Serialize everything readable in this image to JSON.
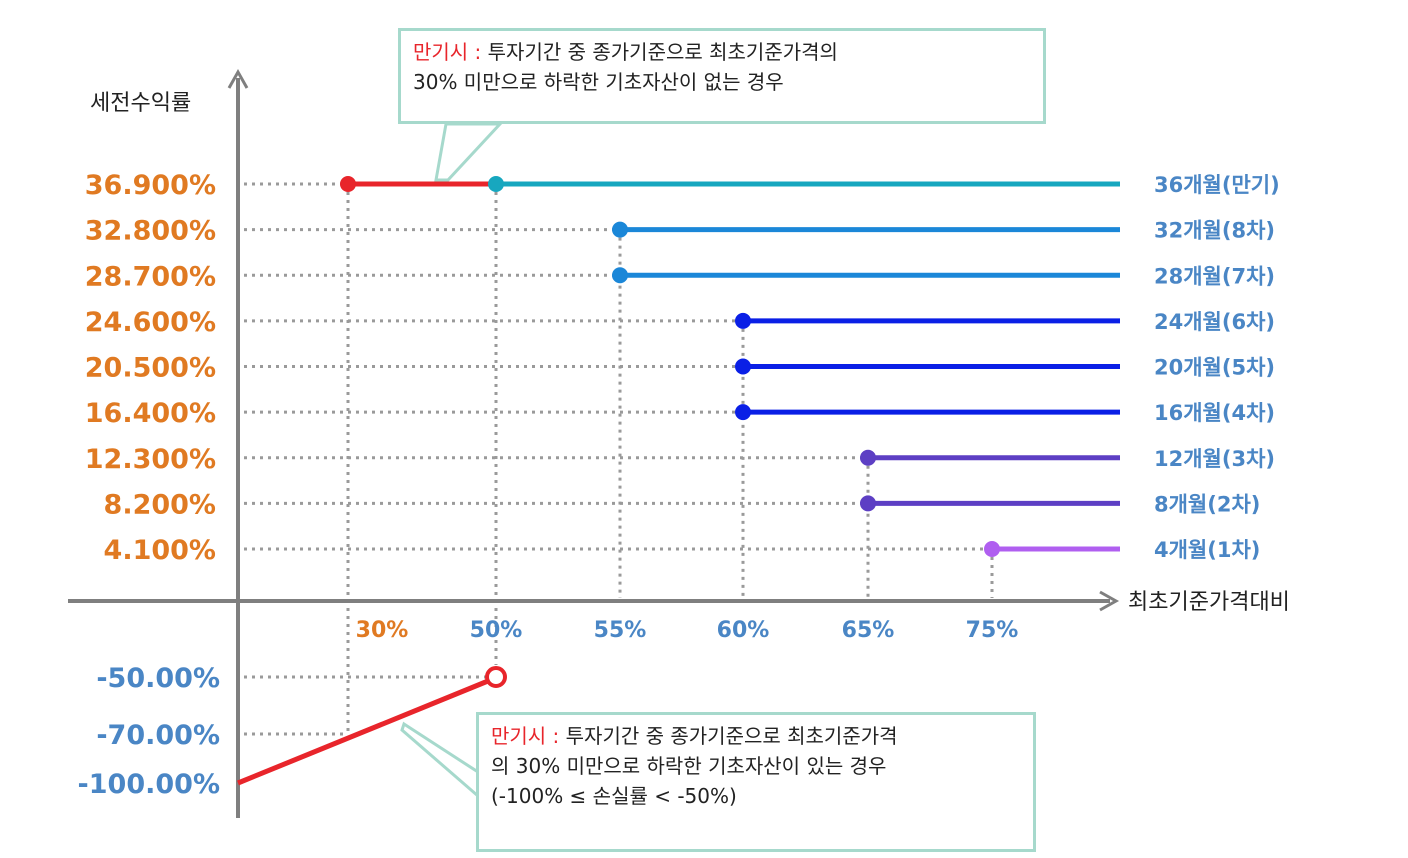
{
  "chart_data": {
    "type": "line",
    "y_axis_title": "세전수익률",
    "x_axis_title": "최초기준가격대비",
    "x_ticks": [
      {
        "label": "30%",
        "value": 30,
        "color": "#e07a22"
      },
      {
        "label": "50%",
        "value": 50,
        "color": "#4a86c5"
      },
      {
        "label": "55%",
        "value": 55,
        "color": "#4a86c5"
      },
      {
        "label": "60%",
        "value": 60,
        "color": "#4a86c5"
      },
      {
        "label": "65%",
        "value": 65,
        "color": "#4a86c5"
      },
      {
        "label": "75%",
        "value": 75,
        "color": "#4a86c5"
      }
    ],
    "y_ticks_positive": [
      {
        "label": "36.900%",
        "value": 36.9
      },
      {
        "label": "32.800%",
        "value": 32.8
      },
      {
        "label": "28.700%",
        "value": 28.7
      },
      {
        "label": "24.600%",
        "value": 24.6
      },
      {
        "label": "20.500%",
        "value": 20.5
      },
      {
        "label": "16.400%",
        "value": 16.4
      },
      {
        "label": "12.300%",
        "value": 12.3
      },
      {
        "label": "8.200%",
        "value": 8.2
      },
      {
        "label": "4.100%",
        "value": 4.1
      }
    ],
    "y_ticks_negative": [
      {
        "label": "-50.00%",
        "value": -50
      },
      {
        "label": "-70.00%",
        "value": -70
      },
      {
        "label": "-100.00%",
        "value": -100
      }
    ],
    "series": [
      {
        "name": "36개월(만기)",
        "return": 36.9,
        "barrier": 50,
        "color": "#17a7bf"
      },
      {
        "name": "32개월(8차)",
        "return": 32.8,
        "barrier": 55,
        "color": "#1b87d8"
      },
      {
        "name": "28개월(7차)",
        "return": 28.7,
        "barrier": 55,
        "color": "#1b87d8"
      },
      {
        "name": "24개월(6차)",
        "return": 24.6,
        "barrier": 60,
        "color": "#0a1fe6"
      },
      {
        "name": "20개월(5차)",
        "return": 20.5,
        "barrier": 60,
        "color": "#0a1fe6"
      },
      {
        "name": "16개월(4차)",
        "return": 16.4,
        "barrier": 60,
        "color": "#0a1fe6"
      },
      {
        "name": "12개월(3차)",
        "return": 12.3,
        "barrier": 65,
        "color": "#5d3fc4"
      },
      {
        "name": "8개월(2차)",
        "return": 8.2,
        "barrier": 65,
        "color": "#5d3fc4"
      },
      {
        "name": "4개월(1차)",
        "return": 4.1,
        "barrier": 75,
        "color": "#b05ff0"
      }
    ],
    "maturity_extension": {
      "from": 30,
      "to": 50,
      "return": 36.9,
      "color": "#e8252b"
    },
    "loss_line": {
      "from_return": -100,
      "to_barrier": 50,
      "to_return": -50,
      "color": "#e8252b"
    }
  },
  "colors": {
    "axis": "#7f7f7f",
    "grid": "#9a9a9a",
    "y_positive_label": "#e07a22",
    "y_negative_label": "#4a86c5",
    "series_label": "#4a86c5",
    "red": "#e8252b",
    "callout_border": "#a6d9cc"
  },
  "notes": {
    "top": {
      "prefix": "만기시 :",
      "line1": "투자기간 중 종가기준으로 최초기준가격의",
      "line2": "30% 미만으로 하락한 기초자산이 없는 경우"
    },
    "bottom": {
      "prefix": "만기시 :",
      "line1": "투자기간 중 종가기준으로 최초기준가격",
      "line2": "의 30% 미만으로 하락한 기초자산이 있는 경우",
      "line3": "(-100% ≤ 손실률 < -50%)"
    }
  }
}
